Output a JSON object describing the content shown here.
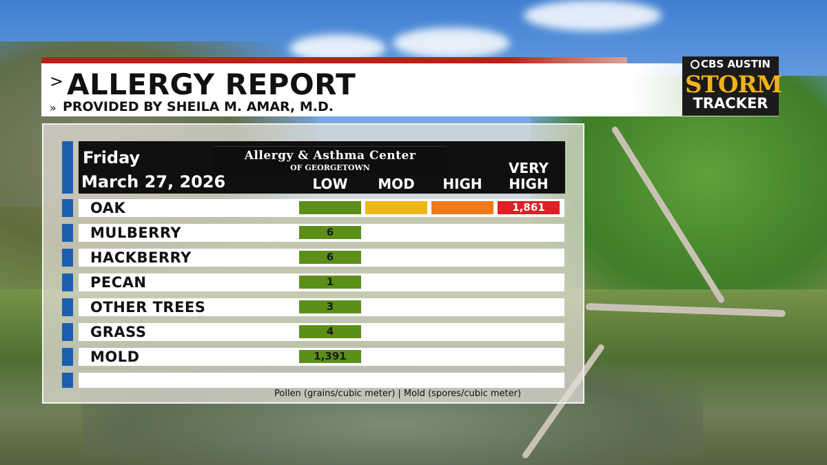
{
  "header": {
    "title": "ALLERGY REPORT",
    "subtitle": "PROVIDED BY SHEILA M. AMAR, M.D.",
    "chevron": ">",
    "double_chevron": "»"
  },
  "station_logo": {
    "network": "CBS AUSTIN",
    "brand_line1": "STORM",
    "brand_line2": "TRACKER"
  },
  "report": {
    "day": "Friday",
    "date": "March 27, 2026",
    "center_name": "Allergy & Asthma Center",
    "center_location": "of Georgetown",
    "levels": [
      "LOW",
      "MOD",
      "HIGH",
      "VERY",
      "HIGH"
    ]
  },
  "rows": [
    {
      "label": "OAK",
      "value": "1,861",
      "level": "very-high"
    },
    {
      "label": "MULBERRY",
      "value": "6",
      "level": "low"
    },
    {
      "label": "HACKBERRY",
      "value": "6",
      "level": "low"
    },
    {
      "label": "PECAN",
      "value": "1",
      "level": "low"
    },
    {
      "label": "OTHER TREES",
      "value": "3",
      "level": "low"
    },
    {
      "label": "GRASS",
      "value": "4",
      "level": "low"
    },
    {
      "label": "MOLD",
      "value": "1,391",
      "level": "low"
    }
  ],
  "footnote": "Pollen (grains/cubic meter) | Mold (spores/cubic meter)",
  "colors": {
    "low": "#5c8f1a",
    "mod": "#efb619",
    "high": "#ef7a1c",
    "very_high": "#e01f26",
    "accent_blue": "#1c5fb0",
    "header_red": "#b32317"
  }
}
